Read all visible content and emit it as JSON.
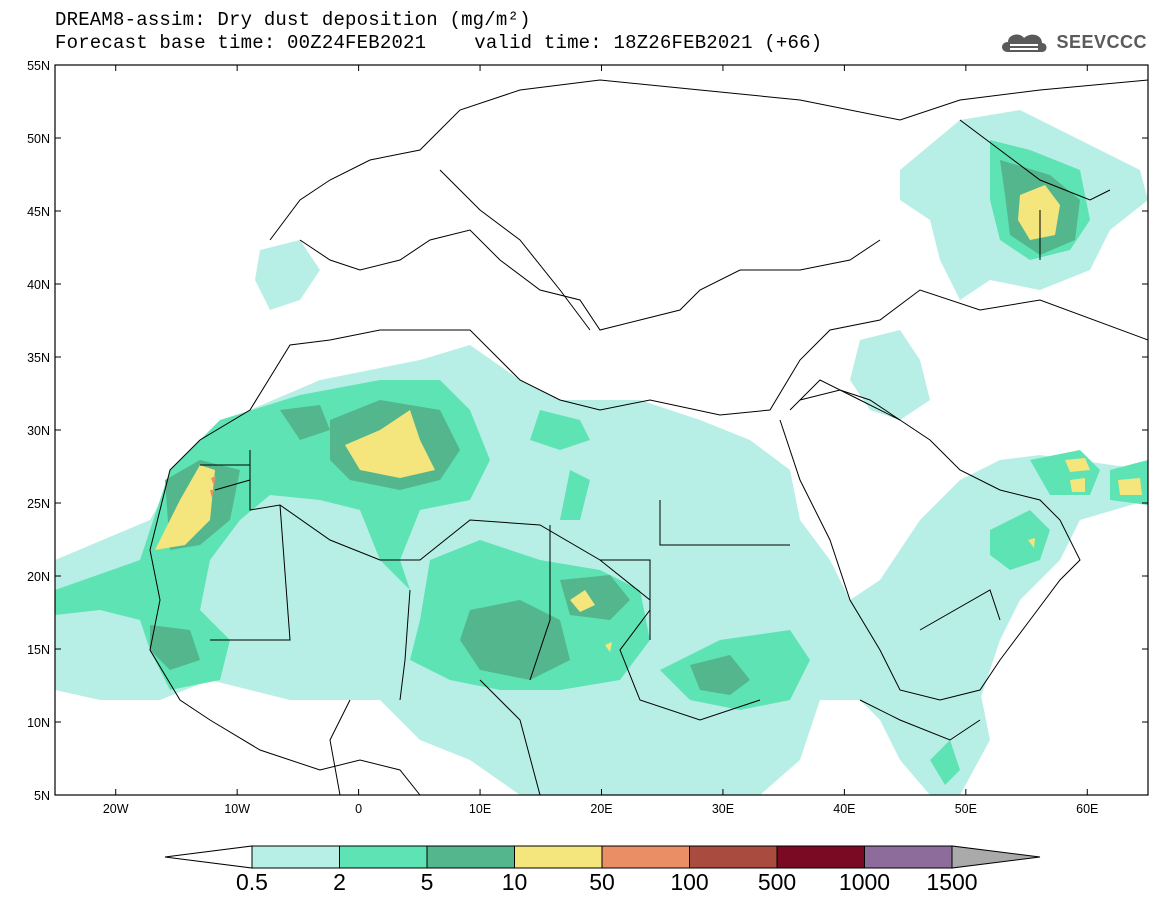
{
  "title_line1": "DREAM8-assim: Dry dust deposition (mg/m²)",
  "title_line2": "Forecast base time: 00Z24FEB2021",
  "valid_time": "valid time: 18Z26FEB2021 (+66)",
  "logo_text": "SEEVCCC",
  "map": {
    "lon_range": [
      -25,
      65
    ],
    "lat_range": [
      5,
      55
    ],
    "lon_ticks": [
      {
        "value": -20,
        "label": "20W"
      },
      {
        "value": -10,
        "label": "10W"
      },
      {
        "value": 0,
        "label": "0"
      },
      {
        "value": 10,
        "label": "10E"
      },
      {
        "value": 20,
        "label": "20E"
      },
      {
        "value": 30,
        "label": "30E"
      },
      {
        "value": 40,
        "label": "40E"
      },
      {
        "value": 50,
        "label": "50E"
      },
      {
        "value": 60,
        "label": "60E"
      }
    ],
    "lat_ticks": [
      {
        "value": 55,
        "label": "55N"
      },
      {
        "value": 50,
        "label": "50N"
      },
      {
        "value": 45,
        "label": "45N"
      },
      {
        "value": 40,
        "label": "40N"
      },
      {
        "value": 35,
        "label": "35N"
      },
      {
        "value": 30,
        "label": "30N"
      },
      {
        "value": 25,
        "label": "25N"
      },
      {
        "value": 20,
        "label": "20N"
      },
      {
        "value": 15,
        "label": "15N"
      },
      {
        "value": 10,
        "label": "10N"
      },
      {
        "value": 5,
        "label": "5N"
      }
    ]
  },
  "colorbar": {
    "labels": [
      "0.5",
      "2",
      "5",
      "10",
      "50",
      "100",
      "500",
      "1000",
      "1500"
    ],
    "colors": [
      "#b7efe6",
      "#5ee3b4",
      "#53b68c",
      "#f5e57d",
      "#ea8e66",
      "#a94b3f",
      "#7a0a24",
      "#8d6c9c"
    ],
    "under_color": "#ffffff",
    "over_color": "#aaaaaa"
  }
}
